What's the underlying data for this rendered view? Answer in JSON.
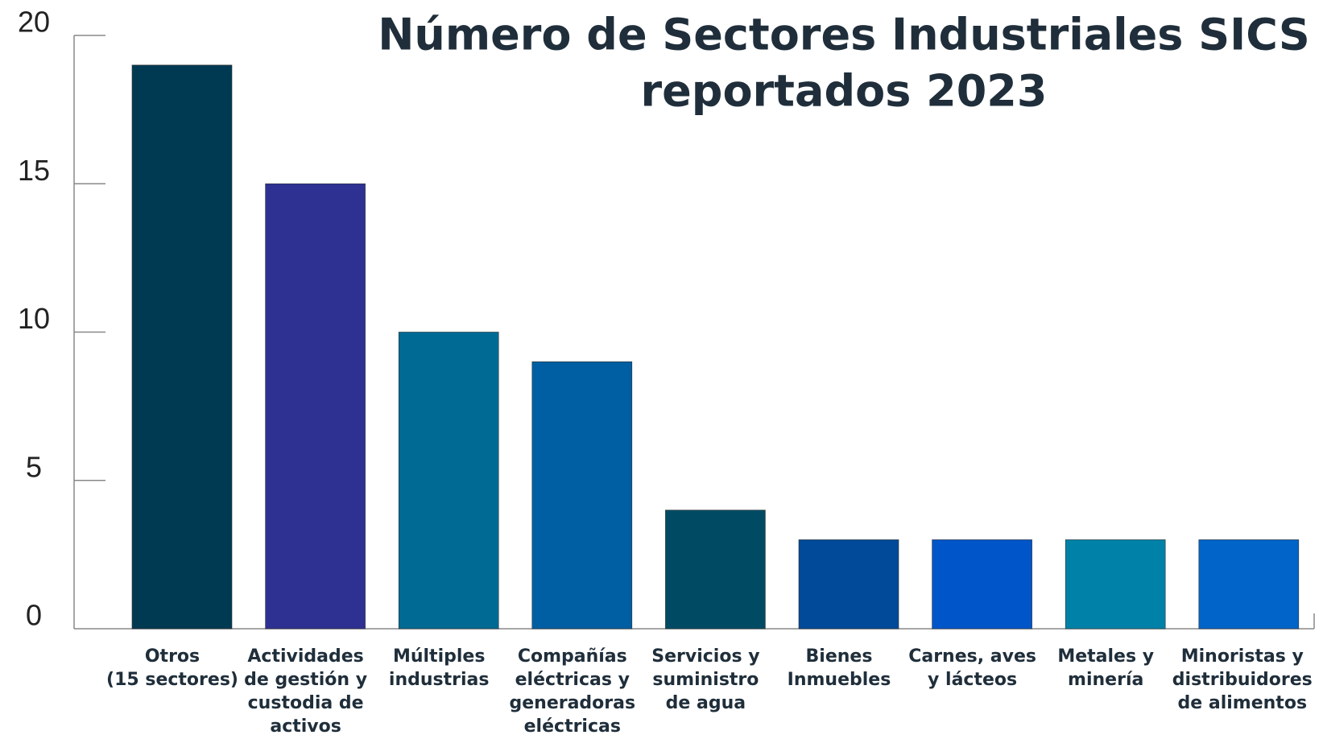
{
  "chart_data": {
    "type": "bar",
    "title": [
      "Número de Sectores Industriales SICS",
      "reportados 2023"
    ],
    "categories": [
      [
        "Otros",
        "(15 sectores)"
      ],
      [
        "Actividades",
        "de gestión y",
        "custodia de",
        "activos"
      ],
      [
        "Múltiples",
        "industrias"
      ],
      [
        "Compañías",
        "eléctricas y",
        "generadoras",
        "eléctricas"
      ],
      [
        "Servicios y",
        "suministro",
        "de agua"
      ],
      [
        "Bienes",
        "Inmuebles"
      ],
      [
        "Carnes, aves",
        "y lácteos"
      ],
      [
        "Metales y",
        "minería"
      ],
      [
        "Minoristas y",
        "distribuidores",
        "de alimentos"
      ]
    ],
    "values": [
      19,
      15,
      10,
      9,
      4,
      3,
      3,
      3,
      3
    ],
    "colors": [
      "#003a52",
      "#2e3192",
      "#006a94",
      "#005ea2",
      "#004b63",
      "#004a99",
      "#0055c8",
      "#0081a8",
      "#0064c8"
    ],
    "ylim": [
      0,
      20
    ],
    "yticks": [
      0,
      5,
      10,
      15,
      20
    ]
  }
}
